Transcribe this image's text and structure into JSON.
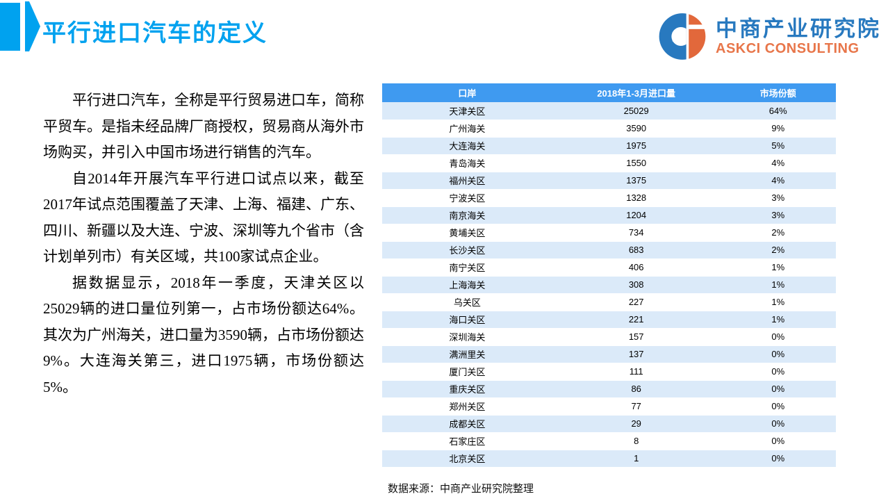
{
  "page_title": "平行进口汽车的定义",
  "logo": {
    "icon": "askci-ci-logo",
    "name_cn": "中商产业研究院",
    "name_en": "ASKCI CONSULTING"
  },
  "paragraphs": [
    "平行进口汽车，全称是平行贸易进口车，简称平贸车。是指未经品牌厂商授权，贸易商从海外市场购买，并引入中国市场进行销售的汽车。",
    "自2014年开展汽车平行进口试点以来，截至2017年试点范围覆盖了天津、上海、福建、广东、四川、新疆以及大连、宁波、深圳等九个省市（含计划单列市）有关区域，共100家试点企业。",
    "据数据显示，2018年一季度，天津关区以25029辆的进口量位列第一，占市场份额达64%。其次为广州海关，进口量为3590辆，占市场份额达9%。大连海关第三，进口1975辆，市场份额达5%。"
  ],
  "table": {
    "type": "table",
    "columns": [
      "口岸",
      "2018年1-3月进口量",
      "市场份额"
    ],
    "rows": [
      [
        "天津关区",
        "25029",
        "64%"
      ],
      [
        "广州海关",
        "3590",
        "9%"
      ],
      [
        "大连海关",
        "1975",
        "5%"
      ],
      [
        "青岛海关",
        "1550",
        "4%"
      ],
      [
        "福州关区",
        "1375",
        "4%"
      ],
      [
        "宁波关区",
        "1328",
        "3%"
      ],
      [
        "南京海关",
        "1204",
        "3%"
      ],
      [
        "黄埔关区",
        "734",
        "2%"
      ],
      [
        "长沙关区",
        "683",
        "2%"
      ],
      [
        "南宁关区",
        "406",
        "1%"
      ],
      [
        "上海海关",
        "308",
        "1%"
      ],
      [
        "乌关区",
        "227",
        "1%"
      ],
      [
        "海口关区",
        "221",
        "1%"
      ],
      [
        "深圳海关",
        "157",
        "0%"
      ],
      [
        "满洲里关",
        "137",
        "0%"
      ],
      [
        "厦门关区",
        "111",
        "0%"
      ],
      [
        "重庆关区",
        "86",
        "0%"
      ],
      [
        "郑州关区",
        "77",
        "0%"
      ],
      [
        "成都关区",
        "29",
        "0%"
      ],
      [
        "石家庄区",
        "8",
        "0%"
      ],
      [
        "北京关区",
        "1",
        "0%"
      ]
    ]
  },
  "source_note": "数据来源：中商产业研究院整理",
  "colors": {
    "accent_blue": "#00A2EF",
    "logo_blue": "#2879BF",
    "logo_orange": "#E8764A",
    "table_header_bg": "#3F9AF0",
    "table_stripe_bg": "#DBEAF9"
  }
}
